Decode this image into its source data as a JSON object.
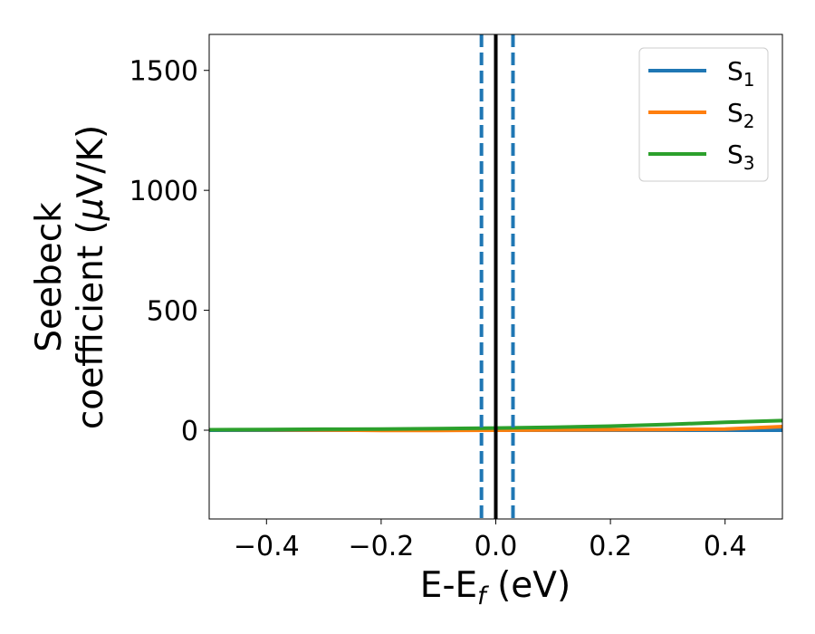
{
  "chart_data": {
    "type": "line",
    "xlabel": "E-E",
    "xlabel_sub": "f",
    "xlabel_unit": " (eV)",
    "ylabel_line1": "Seebeck",
    "ylabel_line2_prefix": "coefficient  (",
    "ylabel_mu": "μ",
    "ylabel_line2_suffix": "V/K)",
    "xlim": [
      -0.5,
      0.5
    ],
    "ylim": [
      -370,
      1650
    ],
    "xticks": [
      -0.4,
      -0.2,
      0.0,
      0.2,
      0.4
    ],
    "xtick_labels": [
      "−0.4",
      "−0.2",
      "0.0",
      "0.2",
      "0.4"
    ],
    "yticks": [
      0,
      500,
      1000,
      1500
    ],
    "ytick_labels": [
      "0",
      "500",
      "1000",
      "1500"
    ],
    "grid": false,
    "legend_placement": "top-right",
    "series": [
      {
        "name": "S",
        "sub": "1",
        "color": "#1f77b4",
        "x": [
          -0.5,
          -0.4,
          -0.3,
          -0.2,
          -0.1,
          0.0,
          0.1,
          0.2,
          0.3,
          0.4,
          0.5
        ],
        "y": [
          0,
          0,
          0,
          0,
          0,
          0,
          0,
          0,
          0,
          0,
          0
        ]
      },
      {
        "name": "S",
        "sub": "2",
        "color": "#ff7f0e",
        "x": [
          -0.5,
          -0.4,
          -0.3,
          -0.2,
          -0.1,
          0.0,
          0.1,
          0.2,
          0.3,
          0.4,
          0.5
        ],
        "y": [
          2,
          2,
          1,
          -1,
          -1,
          0,
          1,
          2,
          3,
          5,
          15
        ]
      },
      {
        "name": "S",
        "sub": "3",
        "color": "#2ca02c",
        "x": [
          -0.5,
          -0.4,
          -0.3,
          -0.2,
          -0.1,
          0.0,
          0.1,
          0.2,
          0.3,
          0.4,
          0.5
        ],
        "y": [
          2,
          3,
          4,
          5,
          7,
          9,
          12,
          17,
          24,
          33,
          40
        ]
      }
    ],
    "vlines": [
      {
        "x": 0.0,
        "color": "#000000",
        "style": "solid"
      },
      {
        "x": -0.025,
        "color": "#1f77b4",
        "style": "dashed"
      },
      {
        "x": 0.03,
        "color": "#1f77b4",
        "style": "dashed"
      }
    ]
  }
}
